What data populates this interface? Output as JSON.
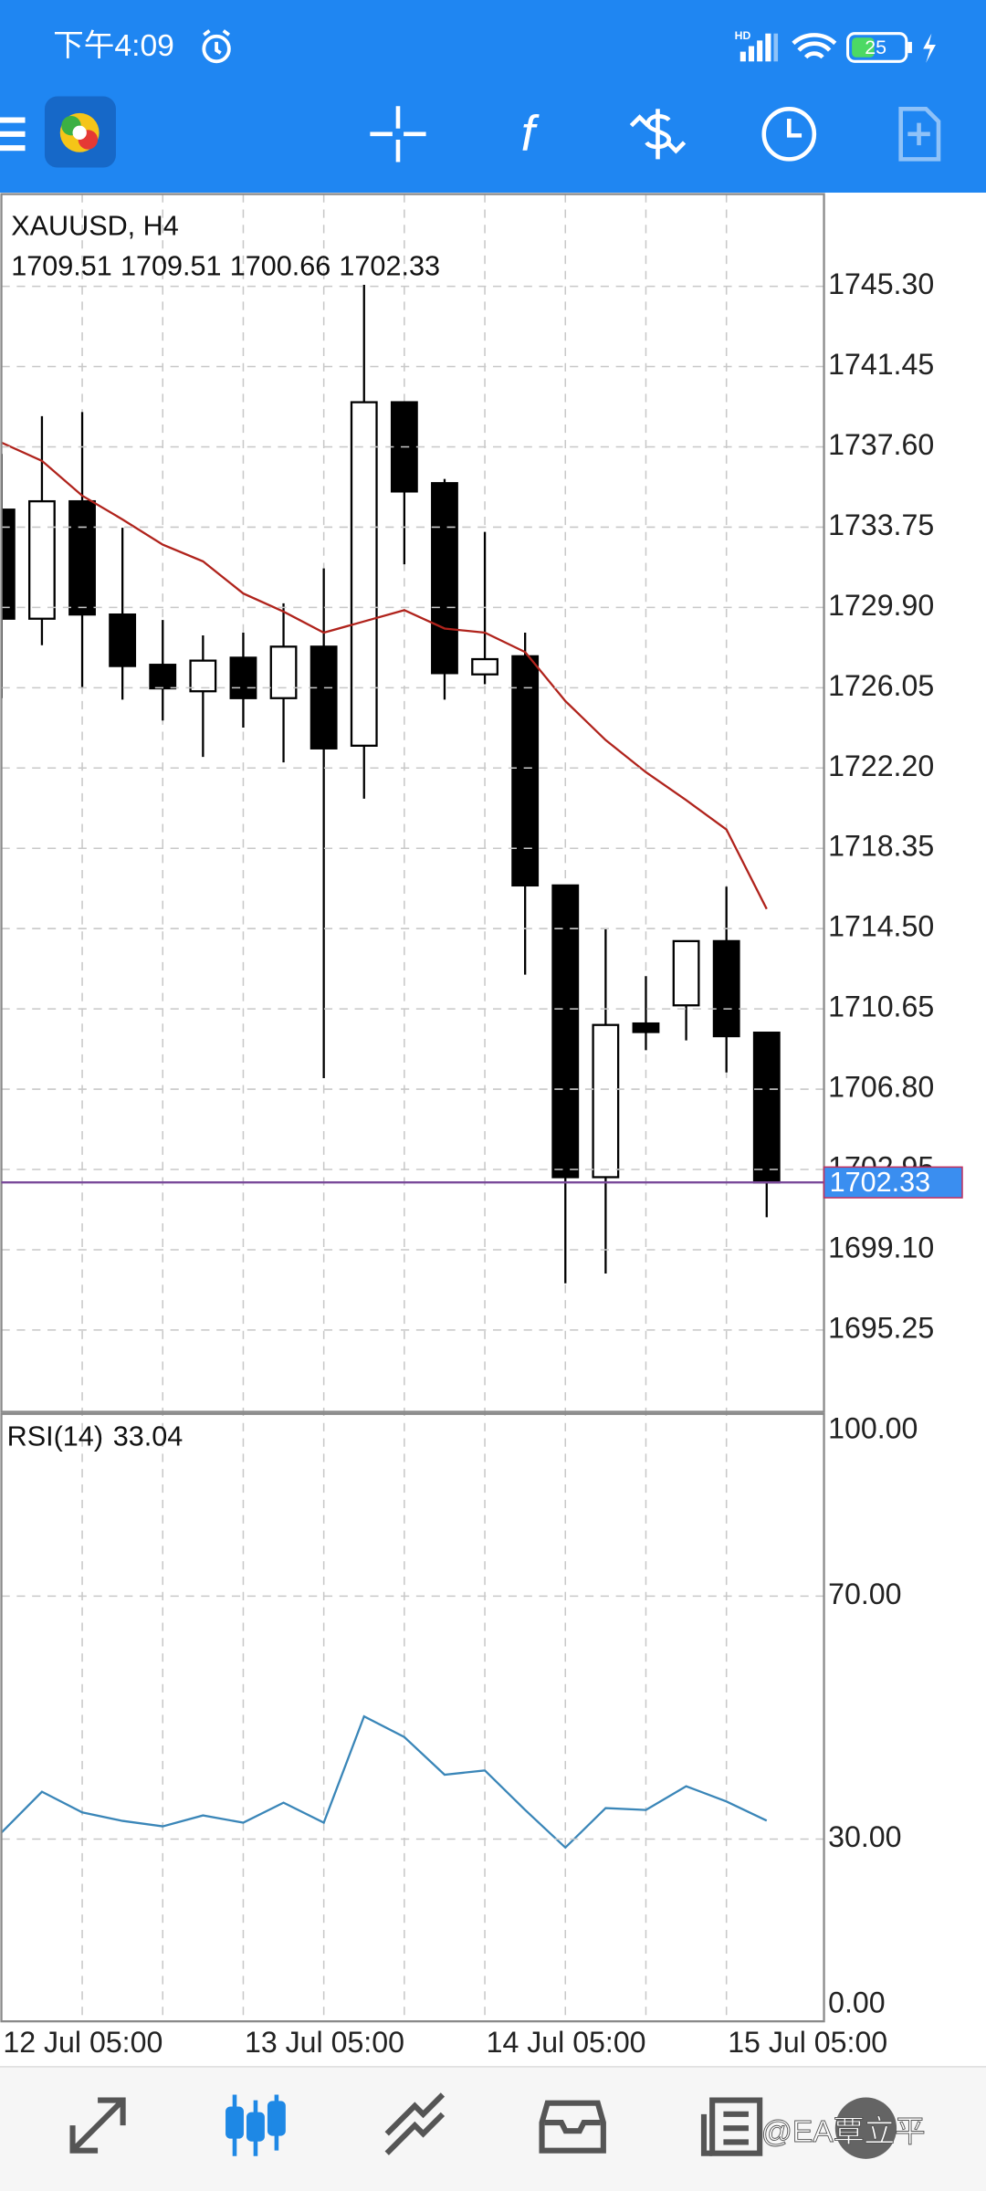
{
  "status_bar": {
    "time": "下午4:09",
    "network": "HD",
    "battery": "25"
  },
  "watermark": "@EA覃立平",
  "chart_data": [
    {
      "type": "candlestick",
      "title": "XAUUSD, H4",
      "categories": [
        "12 Jul 05:00",
        null,
        null,
        null,
        null,
        null,
        "13 Jul 05:00",
        null,
        null,
        null,
        null,
        null,
        "14 Jul 05:00",
        null,
        null,
        null,
        null,
        null,
        "15 Jul 05:00",
        null
      ],
      "open": [
        1734.59,
        1729.36,
        1734.99,
        1729.56,
        1727.15,
        1725.88,
        1727.49,
        1725.55,
        1728.02,
        1723.27,
        1739.74,
        1735.86,
        1726.69,
        1727.56,
        1716.57,
        1702.58,
        1709.95,
        1710.82,
        1713.9,
        1709.51
      ],
      "high": [
        1737.26,
        1739.07,
        1739.27,
        1733.72,
        1729.3,
        1728.56,
        1728.69,
        1730.1,
        1731.77,
        1745.37,
        1739.74,
        1736.06,
        1733.52,
        1728.69,
        1716.57,
        1714.5,
        1712.22,
        1713.9,
        1716.51,
        1709.51
      ],
      "low": [
        1725.55,
        1728.09,
        1726.08,
        1725.48,
        1724.48,
        1722.73,
        1724.14,
        1722.47,
        1707.33,
        1720.73,
        1731.97,
        1725.48,
        1726.22,
        1712.29,
        1697.49,
        1697.96,
        1708.67,
        1709.14,
        1707.6,
        1700.66
      ],
      "close": [
        1729.36,
        1734.99,
        1729.56,
        1727.09,
        1726.02,
        1727.35,
        1725.55,
        1728.02,
        1723.14,
        1739.74,
        1735.46,
        1726.75,
        1727.42,
        1716.57,
        1702.58,
        1709.88,
        1709.54,
        1713.9,
        1709.34,
        1702.33
      ],
      "up_color": "#ffffff",
      "down_color": "#000000",
      "ma_values": [
        1737.8,
        1736.93,
        1735.26,
        1734.12,
        1732.91,
        1732.11,
        1730.57,
        1729.7,
        1728.69,
        1729.23,
        1729.77,
        1728.89,
        1728.69,
        1727.76,
        1725.41,
        1723.54,
        1722.0,
        1720.66,
        1719.25,
        1715.44
      ],
      "ma_color": "#b0231c",
      "last_price_color": "#3a8ef0",
      "ylim": [
        1691.33,
        1749.72
      ],
      "yticks": [
        {
          "value": 1745.3,
          "label": "1745.30"
        },
        1741.45,
        {
          "value": 1737.6,
          "label": "1737.60"
        },
        1733.75,
        {
          "value": 1729.9,
          "label": "1729.90"
        },
        1726.05,
        {
          "value": 1722.2,
          "label": "1722.20"
        },
        1718.35,
        {
          "value": 1714.5,
          "label": "1714.50"
        },
        1710.65,
        {
          "value": 1706.8,
          "label": "1706.80"
        },
        1702.95,
        {
          "value": 1699.1,
          "label": "1699.10"
        },
        1695.25
      ],
      "grid": true
    },
    {
      "type": "line",
      "title": "RSI(14)",
      "values": [
        31.1,
        37.8,
        34.4,
        33.0,
        32.1,
        33.9,
        32.7,
        36.0,
        32.7,
        50.2,
        46.8,
        40.6,
        41.3,
        34.8,
        28.6,
        35.1,
        34.8,
        38.7,
        36.2,
        33.04
      ],
      "color": "#3a86b8",
      "ylim": [
        0,
        100
      ],
      "yticks": [
        {
          "value": 0,
          "label": "0.00"
        },
        {
          "value": 30,
          "label": "30.00"
        },
        {
          "value": 70,
          "label": "70.00"
        },
        {
          "value": 100,
          "label": "100.00"
        }
      ],
      "grid": true
    }
  ]
}
